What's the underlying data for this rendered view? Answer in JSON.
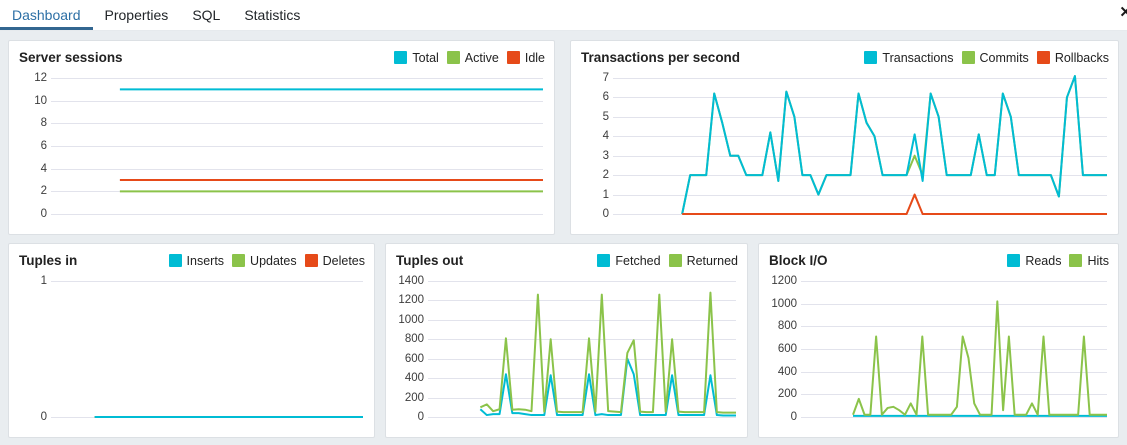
{
  "tabbar": {
    "tabs": [
      {
        "id": "dashboard",
        "label": "Dashboard",
        "active": true
      },
      {
        "id": "properties",
        "label": "Properties",
        "active": false
      },
      {
        "id": "sql",
        "label": "SQL",
        "active": false
      },
      {
        "id": "statistics",
        "label": "Statistics",
        "active": false
      }
    ],
    "close_icon": "✕"
  },
  "colors": {
    "cyan": "#00BCD4",
    "green": "#8BC34A",
    "red": "#E64A19",
    "tab_active": "#326690",
    "gridline": "#e2e3ec",
    "panel_bg": "#ffffff",
    "page_bg": "#e9edf0"
  },
  "panels": [
    {
      "id": "server-sessions",
      "title": "Server sessions",
      "css": "p-server",
      "row": 1,
      "chart_index": 0,
      "legend": [
        {
          "label": "Total",
          "color": "cyan"
        },
        {
          "label": "Active",
          "color": "green"
        },
        {
          "label": "Idle",
          "color": "red"
        }
      ]
    },
    {
      "id": "transactions-per-second",
      "title": "Transactions per second",
      "css": "p-trans",
      "row": 1,
      "chart_index": 1,
      "legend": [
        {
          "label": "Transactions",
          "color": "cyan"
        },
        {
          "label": "Commits",
          "color": "green"
        },
        {
          "label": "Rollbacks",
          "color": "red"
        }
      ]
    },
    {
      "id": "tuples-in",
      "title": "Tuples in",
      "css": "p-tin",
      "row": 2,
      "chart_index": 2,
      "legend": [
        {
          "label": "Inserts",
          "color": "cyan"
        },
        {
          "label": "Updates",
          "color": "green"
        },
        {
          "label": "Deletes",
          "color": "red"
        }
      ]
    },
    {
      "id": "tuples-out",
      "title": "Tuples out",
      "css": "p-tout",
      "row": 2,
      "chart_index": 3,
      "legend": [
        {
          "label": "Fetched",
          "color": "cyan"
        },
        {
          "label": "Returned",
          "color": "green"
        }
      ]
    },
    {
      "id": "block-io",
      "title": "Block I/O",
      "css": "p-bio",
      "row": 2,
      "chart_index": 4,
      "legend": [
        {
          "label": "Reads",
          "color": "cyan"
        },
        {
          "label": "Hits",
          "color": "green"
        }
      ]
    }
  ],
  "chart_data": [
    {
      "type": "line",
      "title": "Server sessions",
      "xlabel": "",
      "ylabel": "",
      "ylim": [
        0,
        12
      ],
      "yticks": [
        12,
        10,
        8,
        6,
        4,
        2,
        0
      ],
      "grid": true,
      "legend_position": "top-right",
      "x_start_fraction": 0.14,
      "series": [
        {
          "name": "Idle",
          "color": "red",
          "values": [
            3,
            3
          ]
        },
        {
          "name": "Active",
          "color": "green",
          "values": [
            2,
            2
          ]
        },
        {
          "name": "Total",
          "color": "cyan",
          "values": [
            11,
            11
          ]
        }
      ]
    },
    {
      "type": "line",
      "title": "Transactions per second",
      "xlabel": "",
      "ylabel": "",
      "ylim": [
        0,
        7
      ],
      "yticks": [
        7,
        6,
        5,
        4,
        3,
        2,
        1,
        0
      ],
      "grid": true,
      "legend_position": "top-right",
      "x_start_fraction": 0.14,
      "series": [
        {
          "name": "Commits",
          "color": "green",
          "values": [
            0,
            2,
            2,
            2,
            6.2,
            4.7,
            3,
            3,
            2,
            2,
            2,
            4.2,
            1.7,
            6.3,
            5,
            2,
            2,
            1,
            2,
            2,
            2,
            2,
            6.2,
            4.7,
            4,
            2,
            2,
            2,
            2,
            3,
            2,
            6.2,
            5,
            2,
            2,
            2,
            2,
            4.1,
            2,
            2,
            6.2,
            5,
            2,
            2,
            2,
            2,
            2,
            0.9,
            6,
            7.1,
            2,
            2,
            2,
            2
          ]
        },
        {
          "name": "Transactions",
          "color": "cyan",
          "values": [
            0,
            2,
            2,
            2,
            6.2,
            4.7,
            3,
            3,
            2,
            2,
            2,
            4.2,
            1.7,
            6.3,
            5,
            2,
            2,
            1,
            2,
            2,
            2,
            2,
            6.2,
            4.7,
            4,
            2,
            2,
            2,
            2,
            4.1,
            1.7,
            6.2,
            5,
            2,
            2,
            2,
            2,
            4.1,
            2,
            2,
            6.2,
            5,
            2,
            2,
            2,
            2,
            2,
            0.9,
            6,
            7.1,
            2,
            2,
            2,
            2
          ]
        },
        {
          "name": "Rollbacks",
          "color": "red",
          "values": [
            0,
            0,
            0,
            0,
            0,
            0,
            0,
            0,
            0,
            0,
            0,
            0,
            0,
            0,
            0,
            0,
            0,
            0,
            0,
            0,
            0,
            0,
            0,
            0,
            0,
            0,
            0,
            0,
            0,
            1,
            0,
            0,
            0,
            0,
            0,
            0,
            0,
            0,
            0,
            0,
            0,
            0,
            0,
            0,
            0,
            0,
            0,
            0,
            0,
            0,
            0,
            0,
            0,
            0
          ]
        }
      ]
    },
    {
      "type": "line",
      "title": "Tuples in",
      "xlabel": "",
      "ylabel": "",
      "ylim": [
        0,
        1
      ],
      "yticks": [
        1,
        0
      ],
      "grid": true,
      "legend_position": "top-right",
      "x_start_fraction": 0.14,
      "series": [
        {
          "name": "Deletes",
          "color": "red",
          "values": [
            0,
            0
          ]
        },
        {
          "name": "Updates",
          "color": "green",
          "values": [
            0,
            0
          ]
        },
        {
          "name": "Inserts",
          "color": "cyan",
          "values": [
            0,
            0
          ]
        }
      ]
    },
    {
      "type": "line",
      "title": "Tuples out",
      "xlabel": "",
      "ylabel": "",
      "ylim": [
        0,
        1400
      ],
      "yticks": [
        1400,
        1200,
        1000,
        800,
        600,
        400,
        200,
        0
      ],
      "grid": true,
      "legend_position": "top-right",
      "x_start_fraction": 0.17,
      "series": [
        {
          "name": "Fetched",
          "color": "cyan",
          "values": [
            80,
            20,
            30,
            30,
            440,
            40,
            40,
            30,
            20,
            20,
            20,
            430,
            20,
            20,
            20,
            20,
            20,
            440,
            20,
            30,
            20,
            20,
            20,
            600,
            440,
            20,
            20,
            20,
            20,
            20,
            430,
            20,
            20,
            20,
            20,
            20,
            430,
            20,
            15,
            15,
            15
          ]
        },
        {
          "name": "Returned",
          "color": "green",
          "values": [
            100,
            130,
            60,
            80,
            810,
            75,
            80,
            75,
            60,
            1260,
            55,
            800,
            55,
            50,
            50,
            50,
            50,
            810,
            55,
            1260,
            60,
            55,
            50,
            660,
            790,
            55,
            50,
            50,
            1260,
            55,
            800,
            55,
            50,
            50,
            50,
            50,
            1280,
            50,
            45,
            45,
            45
          ]
        }
      ]
    },
    {
      "type": "line",
      "title": "Block I/O",
      "xlabel": "",
      "ylabel": "",
      "ylim": [
        0,
        1200
      ],
      "yticks": [
        1200,
        1000,
        800,
        600,
        400,
        200,
        0
      ],
      "grid": true,
      "legend_position": "top-right",
      "x_start_fraction": 0.17,
      "series": [
        {
          "name": "Reads",
          "color": "cyan",
          "values": [
            10,
            10
          ]
        },
        {
          "name": "Hits",
          "color": "green",
          "values": [
            20,
            160,
            20,
            20,
            710,
            20,
            80,
            90,
            60,
            20,
            120,
            20,
            710,
            20,
            20,
            20,
            20,
            20,
            90,
            710,
            520,
            120,
            20,
            20,
            20,
            1020,
            60,
            710,
            20,
            20,
            20,
            120,
            20,
            710,
            20,
            20,
            20,
            20,
            20,
            20,
            710,
            20,
            20,
            20,
            20
          ]
        }
      ]
    }
  ]
}
